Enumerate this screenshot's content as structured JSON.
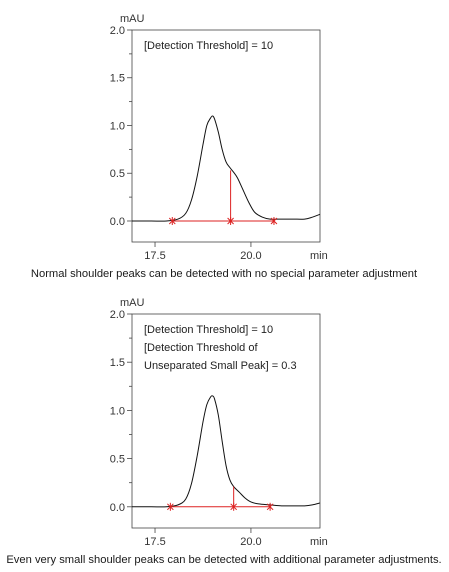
{
  "chart_data": [
    {
      "type": "line",
      "title": "",
      "ylabel": "mAU",
      "xlabel": "min",
      "xlim": [
        16.9,
        21.8
      ],
      "ylim": [
        -0.22,
        2.0
      ],
      "yticks": [
        0.0,
        0.5,
        1.0,
        1.5,
        2.0
      ],
      "ytick_labels": [
        "0.0",
        "0.5",
        "1.0",
        "1.5",
        "2.0"
      ],
      "xticks": [
        17.5,
        20.0
      ],
      "xtick_labels": [
        "17.5",
        "20.0"
      ],
      "annotations": [
        "[Detection Threshold] = 10"
      ],
      "caption": "Normal shoulder peaks can be detected with no special parameter adjustment",
      "series": [
        {
          "x": [
            16.9,
            17.4,
            17.8,
            18.1,
            18.3,
            18.45,
            18.6,
            18.75,
            18.85,
            18.95,
            19.0,
            19.05,
            19.15,
            19.25,
            19.35,
            19.45,
            19.55,
            19.65,
            19.8,
            19.95,
            20.1,
            20.3,
            20.5,
            20.8,
            21.1,
            21.4,
            21.6,
            21.8
          ],
          "y": [
            0.0,
            0.0,
            0.0,
            0.02,
            0.08,
            0.22,
            0.47,
            0.8,
            1.0,
            1.08,
            1.1,
            1.07,
            0.93,
            0.75,
            0.62,
            0.56,
            0.51,
            0.45,
            0.32,
            0.19,
            0.09,
            0.04,
            0.02,
            0.02,
            0.02,
            0.02,
            0.04,
            0.07
          ]
        }
      ],
      "baseline_x": [
        17.95,
        20.6
      ],
      "baseline_y": 0.0,
      "split_x": 19.47,
      "split_y": 0.53,
      "markers_x": [
        17.95,
        19.47,
        20.6
      ]
    },
    {
      "type": "line",
      "title": "",
      "ylabel": "mAU",
      "xlabel": "min",
      "xlim": [
        16.9,
        21.8
      ],
      "ylim": [
        -0.22,
        2.0
      ],
      "yticks": [
        0.0,
        0.5,
        1.0,
        1.5,
        2.0
      ],
      "ytick_labels": [
        "0.0",
        "0.5",
        "1.0",
        "1.5",
        "2.0"
      ],
      "xticks": [
        17.5,
        20.0
      ],
      "xtick_labels": [
        "17.5",
        "20.0"
      ],
      "annotations": [
        "[Detection Threshold] = 10",
        "[Detection Threshold of",
        "Unseparated Small Peak] = 0.3"
      ],
      "caption": "Even very small shoulder peaks can be detected with additional parameter adjustments.",
      "series": [
        {
          "x": [
            16.9,
            17.4,
            17.8,
            18.1,
            18.3,
            18.45,
            18.6,
            18.75,
            18.85,
            18.95,
            19.0,
            19.05,
            19.15,
            19.25,
            19.35,
            19.45,
            19.55,
            19.7,
            19.85,
            20.0,
            20.2,
            20.5,
            20.8,
            21.1,
            21.4,
            21.6,
            21.8
          ],
          "y": [
            0.0,
            0.0,
            0.0,
            0.02,
            0.08,
            0.24,
            0.53,
            0.88,
            1.06,
            1.14,
            1.15,
            1.12,
            0.95,
            0.68,
            0.43,
            0.28,
            0.21,
            0.15,
            0.09,
            0.05,
            0.03,
            0.02,
            0.01,
            0.01,
            0.01,
            0.02,
            0.04
          ]
        }
      ],
      "baseline_x": [
        17.9,
        20.5
      ],
      "baseline_y": 0.0,
      "split_x": 19.55,
      "split_y": 0.21,
      "markers_x": [
        17.9,
        19.55,
        20.5
      ]
    }
  ]
}
